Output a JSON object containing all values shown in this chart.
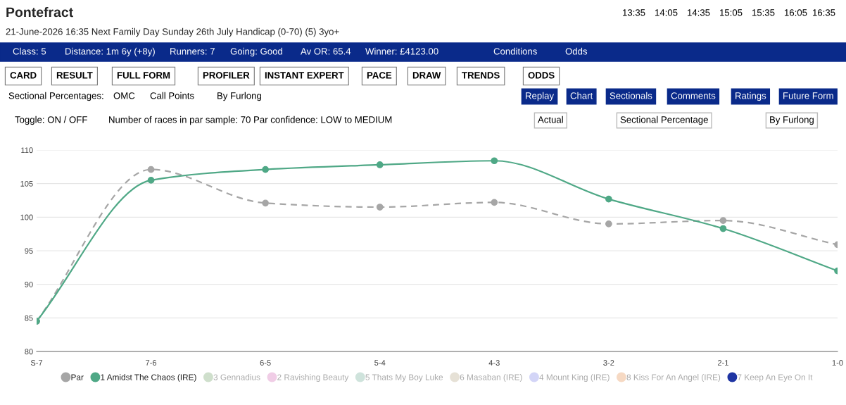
{
  "chart_data": {
    "type": "line",
    "title": "Pontefract",
    "subtitle": "21-June-2026 16:35 Next Family Day Sunday 26th July Handicap (0-70) (5) 3yo+",
    "annotations": [
      "13:35",
      "14:05",
      "14:35",
      "15:05",
      "15:35",
      "16:05",
      "16:35",
      "Class: 5",
      "Distance: 1m 6y (+8y)",
      "Runners: 7",
      "Going: Good",
      "Av OR: 65.4",
      "Winner: £4123.00",
      "Conditions",
      "Odds",
      "CARD",
      "RESULT",
      "FULL FORM",
      "PROFILER",
      "INSTANT EXPERT",
      "PACE",
      "DRAW",
      "TRENDS",
      "ODDS",
      "Sectional Percentages:",
      "OMC",
      "Call Points",
      "By Furlong",
      "Replay",
      "Chart",
      "Sectionals",
      "Comments",
      "Ratings",
      "Future Form",
      "Toggle: ON / OFF",
      "Number of races in par sample: 70 Par confidence: LOW to MEDIUM",
      "Actual",
      "Sectional Percentage",
      "By Furlong"
    ],
    "categories": [
      "S-7",
      "7-6",
      "6-5",
      "5-4",
      "4-3",
      "3-2",
      "2-1",
      "1-0"
    ],
    "series": [
      {
        "name": "Par",
        "color": "#a6a6a6",
        "line_style": "dashed",
        "values": [
          84.5,
          107.1,
          102.1,
          101.5,
          102.2,
          99.0,
          99.5,
          95.9
        ]
      },
      {
        "name": "1 Amidst The Chaos (IRE)",
        "color": "#4fa886",
        "line_style": "solid",
        "values": [
          84.5,
          105.5,
          107.1,
          107.8,
          108.4,
          102.7,
          98.3,
          92.0
        ]
      },
      {
        "name": "3 Gennadius",
        "color": "#cfdfcc",
        "values": [
          null,
          null,
          null,
          null,
          null,
          null,
          null,
          null
        ]
      },
      {
        "name": "2 Ravishing Beauty",
        "color": "#f0cde6",
        "values": [
          null,
          null,
          null,
          null,
          null,
          null,
          null,
          null
        ]
      },
      {
        "name": "5 Thats My Boy Luke",
        "color": "#cfe3dc",
        "values": [
          null,
          null,
          null,
          null,
          null,
          null,
          null,
          null
        ]
      },
      {
        "name": "6 Masaban (IRE)",
        "color": "#e6e1d6",
        "values": [
          null,
          null,
          null,
          null,
          null,
          null,
          null,
          null
        ]
      },
      {
        "name": "4 Mount King (IRE)",
        "color": "#d3d5f7",
        "values": [
          null,
          null,
          null,
          null,
          null,
          null,
          null,
          null
        ]
      },
      {
        "name": "8 Kiss For An Angel (IRE)",
        "color": "#f6d9c3",
        "values": [
          null,
          null,
          null,
          null,
          null,
          null,
          null,
          null
        ]
      },
      {
        "name": "7 Keep An Eye On It",
        "color": "#1f35a3",
        "values": [
          null,
          null,
          null,
          null,
          null,
          null,
          null,
          null
        ]
      }
    ],
    "ylim": [
      80,
      110
    ],
    "yticks": [
      80,
      85,
      90,
      95,
      100,
      105,
      110
    ],
    "grid": "y",
    "legend": "bottom",
    "marker": "circle"
  }
}
